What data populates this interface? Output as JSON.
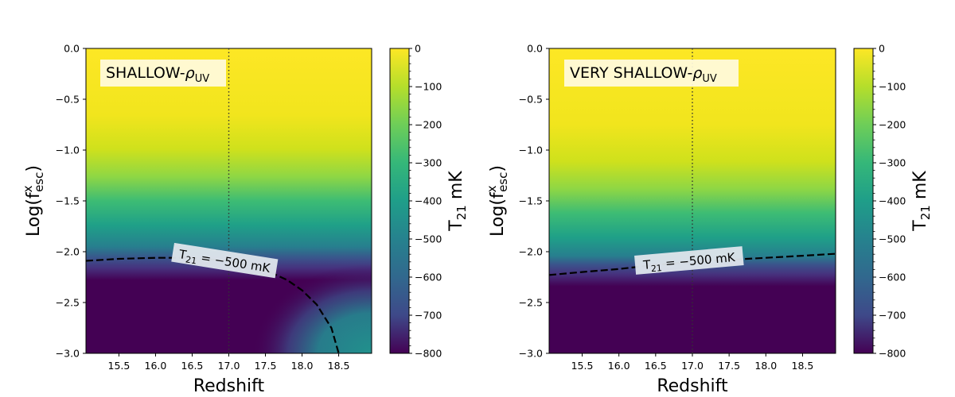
{
  "chart_data": [
    {
      "type": "heatmap",
      "panel_label_main": "SHALLOW-",
      "panel_label_symbol": "ρ",
      "panel_label_sub": "UV",
      "xlabel": "Redshift",
      "ylabel_main": "Log(f",
      "ylabel_sup": "x",
      "ylabel_sub": "esc",
      "ylabel_close": ")",
      "xlim": [
        15.05,
        18.95
      ],
      "ylim": [
        -3.0,
        0.0
      ],
      "xticks": [
        15.5,
        16.0,
        16.5,
        17.0,
        17.5,
        18.0,
        18.5
      ],
      "xtick_labels": [
        "15.5",
        "16.0",
        "16.5",
        "17.0",
        "17.5",
        "18.0",
        "18.5"
      ],
      "yticks": [
        0.0,
        -0.5,
        -1.0,
        -1.5,
        -2.0,
        -2.5,
        -3.0
      ],
      "ytick_labels": [
        "0.0",
        "−0.5",
        "−1.0",
        "−1.5",
        "−2.0",
        "−2.5",
        "−3.0"
      ],
      "vline_x": 17.0,
      "contour": {
        "level": -500,
        "label_prefix": "T",
        "label_sub": "21",
        "label_value": " = −500 mK",
        "x": [
          15.05,
          15.5,
          16.0,
          16.5,
          17.0,
          17.5,
          17.8,
          18.0,
          18.2,
          18.4,
          18.5
        ],
        "y": [
          -2.09,
          -2.07,
          -2.06,
          -2.06,
          -2.09,
          -2.18,
          -2.28,
          -2.38,
          -2.52,
          -2.75,
          -3.0
        ]
      },
      "colorbar": {
        "label_main": "T",
        "label_sub": "21",
        "label_unit": " mK",
        "range": [
          -800,
          0
        ],
        "ticks": [
          0,
          -100,
          -200,
          -300,
          -400,
          -500,
          -600,
          -700,
          -800
        ],
        "tick_labels": [
          "0",
          "−100",
          "−200",
          "−300",
          "−400",
          "−500",
          "−600",
          "−700",
          "−800"
        ]
      }
    },
    {
      "type": "heatmap",
      "panel_label_main": "VERY SHALLOW-",
      "panel_label_symbol": "ρ",
      "panel_label_sub": "UV",
      "xlabel": "Redshift",
      "ylabel_main": "Log(f",
      "ylabel_sup": "x",
      "ylabel_sub": "esc",
      "ylabel_close": ")",
      "xlim": [
        15.05,
        18.95
      ],
      "ylim": [
        -3.0,
        0.0
      ],
      "xticks": [
        15.5,
        16.0,
        16.5,
        17.0,
        17.5,
        18.0,
        18.5
      ],
      "xtick_labels": [
        "15.5",
        "16.0",
        "16.5",
        "17.0",
        "17.5",
        "18.0",
        "18.5"
      ],
      "yticks": [
        0.0,
        -0.5,
        -1.0,
        -1.5,
        -2.0,
        -2.5,
        -3.0
      ],
      "ytick_labels": [
        "0.0",
        "−0.5",
        "−1.0",
        "−1.5",
        "−2.0",
        "−2.5",
        "−3.0"
      ],
      "vline_x": 17.0,
      "contour": {
        "level": -500,
        "label_prefix": "T",
        "label_sub": "21",
        "label_value": " = −500 mK",
        "x": [
          15.05,
          15.5,
          16.0,
          16.5,
          17.0,
          17.5,
          18.0,
          18.5,
          18.95
        ],
        "y": [
          -2.23,
          -2.2,
          -2.17,
          -2.13,
          -2.1,
          -2.08,
          -2.06,
          -2.04,
          -2.02
        ]
      },
      "colorbar": {
        "label_main": "T",
        "label_sub": "21",
        "label_unit": " mK",
        "range": [
          -800,
          0
        ],
        "ticks": [
          0,
          -100,
          -200,
          -300,
          -400,
          -500,
          -600,
          -700,
          -800
        ],
        "tick_labels": [
          "0",
          "−100",
          "−200",
          "−300",
          "−400",
          "−500",
          "−600",
          "−700",
          "−800"
        ]
      }
    }
  ]
}
